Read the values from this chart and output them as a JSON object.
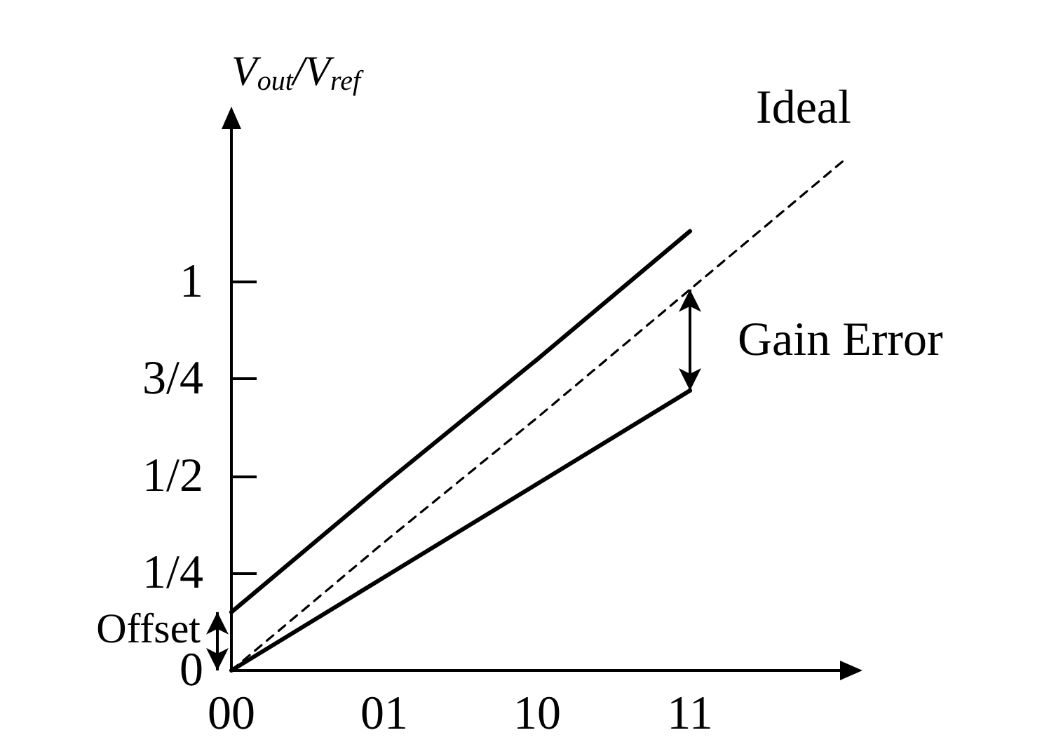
{
  "chart_data": {
    "type": "line",
    "ylabel": "V$_{out}$/V$_{ref}$",
    "categories": [
      "00",
      "01",
      "10",
      "11",
      null
    ],
    "ylim": [
      0,
      1.4
    ],
    "yticks": [
      {
        "value": 0,
        "label": "0"
      },
      {
        "value": 0.25,
        "label": "1/4"
      },
      {
        "value": 0.5,
        "label": "1/2"
      },
      {
        "value": 0.75,
        "label": "3/4"
      },
      {
        "value": 1,
        "label": "1"
      }
    ],
    "marker": "none",
    "series": [
      {
        "color": "#000000",
        "values": [
          0.15,
          0.48,
          0.8,
          1.13,
          null
        ],
        "line_style": "solid"
      },
      {
        "name": "Ideal",
        "color": "#000000",
        "values": [
          0,
          0.33,
          0.65,
          0.98,
          1.31
        ],
        "line_style": "dashed"
      },
      {
        "color": "#000000",
        "values": [
          0,
          0.24,
          0.48,
          0.72,
          null
        ],
        "line_style": "solid"
      }
    ],
    "annotations": [
      "Gain Error",
      "Offset"
    ]
  }
}
